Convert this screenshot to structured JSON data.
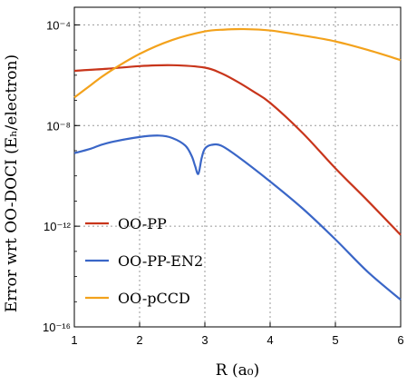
{
  "chart_data": {
    "type": "line",
    "xlabel": "R   (a₀)",
    "ylabel": "Error wrt OO-DOCI   (Eₕ/electron)",
    "xlim": [
      1,
      6
    ],
    "ylim_log10": [
      -16,
      -3.3
    ],
    "y_scale": "log",
    "grid": "dotted",
    "legend_position": "bottom-left",
    "x_ticks": [
      1,
      2,
      3,
      4,
      5,
      6
    ],
    "y_ticks": [
      {
        "exp": -4,
        "label": "10⁻⁴"
      },
      {
        "exp": -8,
        "label": "10⁻⁸"
      },
      {
        "exp": -12,
        "label": "10⁻¹²"
      },
      {
        "exp": -16,
        "label": "10⁻¹⁶"
      }
    ],
    "series": [
      {
        "name": "OO-PP",
        "color": "#c8351b",
        "x": [
          1.0,
          1.5,
          2.0,
          2.5,
          3.0,
          3.25,
          3.5,
          3.75,
          4.0,
          4.5,
          5.0,
          5.5,
          6.0
        ],
        "y": [
          1.5e-06,
          1.8e-06,
          2.3e-06,
          2.5e-06,
          2e-06,
          1.2e-06,
          5.5e-07,
          2.2e-07,
          8e-08,
          5e-09,
          2e-10,
          1e-11,
          4.5e-13
        ]
      },
      {
        "name": "OO-PP-EN2",
        "color": "#3a66c7",
        "x": [
          1.0,
          1.25,
          1.5,
          2.0,
          2.3,
          2.5,
          2.7,
          2.8,
          2.85,
          2.9,
          2.95,
          3.0,
          3.1,
          3.25,
          3.5,
          4.0,
          4.5,
          5.0,
          5.5,
          6.0
        ],
        "y": [
          8e-10,
          1.2e-09,
          2e-09,
          3.5e-09,
          4e-09,
          3.2e-09,
          1.6e-09,
          6e-10,
          2.5e-10,
          1.2e-10,
          5e-10,
          1.2e-09,
          1.7e-09,
          1.6e-09,
          6e-10,
          6e-11,
          5e-12,
          3e-13,
          1.5e-14,
          1.2e-15
        ]
      },
      {
        "name": "OO-pCCD",
        "color": "#f3a21c",
        "x": [
          1.0,
          1.25,
          1.5,
          2.0,
          2.5,
          3.0,
          3.3,
          3.6,
          4.0,
          4.5,
          5.0,
          5.5,
          6.0
        ],
        "y": [
          1.3e-07,
          4e-07,
          1.2e-06,
          7e-06,
          2.5e-05,
          5.5e-05,
          6.5e-05,
          6.8e-05,
          6e-05,
          3.8e-05,
          2.2e-05,
          1e-05,
          4e-06
        ]
      }
    ]
  }
}
